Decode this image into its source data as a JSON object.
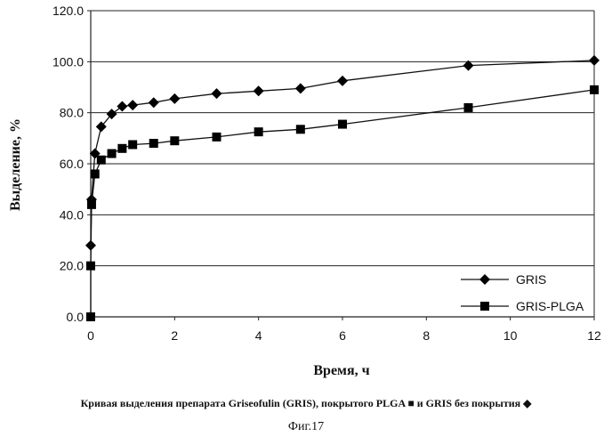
{
  "chart_data": {
    "type": "line",
    "xlabel": "Время, ч",
    "ylabel": "Выделение, %",
    "xlim": [
      0,
      12
    ],
    "ylim": [
      0,
      120
    ],
    "xticks": [
      "0",
      "2",
      "4",
      "6",
      "8",
      "10",
      "12"
    ],
    "yticks": [
      "0.0",
      "20.0",
      "40.0",
      "60.0",
      "80.0",
      "100.0",
      "120.0"
    ],
    "grid": "horizontal",
    "legend_position": "bottom-right",
    "series": [
      {
        "name": "GRIS",
        "marker": "diamond",
        "points": [
          [
            0,
            28
          ],
          [
            0.02,
            46
          ],
          [
            0.1,
            64
          ],
          [
            0.25,
            74.5
          ],
          [
            0.5,
            79.5
          ],
          [
            0.75,
            82.5
          ],
          [
            1,
            83
          ],
          [
            1.5,
            84
          ],
          [
            2,
            85.5
          ],
          [
            3,
            87.5
          ],
          [
            4,
            88.5
          ],
          [
            5,
            89.5
          ],
          [
            6,
            92.5
          ],
          [
            9,
            98.5
          ],
          [
            12,
            100.5
          ]
        ]
      },
      {
        "name": "GRIS-PLGA",
        "marker": "square",
        "points": [
          [
            0,
            0
          ],
          [
            0,
            20
          ],
          [
            0.02,
            44
          ],
          [
            0.1,
            56
          ],
          [
            0.25,
            61.5
          ],
          [
            0.5,
            64
          ],
          [
            0.75,
            66
          ],
          [
            1,
            67.5
          ],
          [
            1.5,
            68
          ],
          [
            2,
            69
          ],
          [
            3,
            70.5
          ],
          [
            4,
            72.5
          ],
          [
            5,
            73.5
          ],
          [
            6,
            75.5
          ],
          [
            9,
            82
          ],
          [
            12,
            89
          ]
        ]
      }
    ]
  },
  "caption": "Кривая выделения препарата Griseofulin (GRIS), покрытого PLGA ■ и GRIS без покрытия ◆",
  "figure_label": "Фиг.17"
}
